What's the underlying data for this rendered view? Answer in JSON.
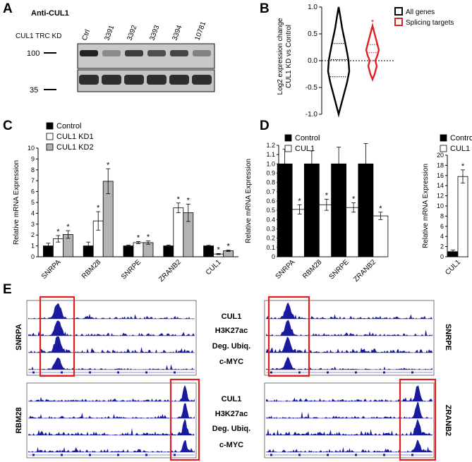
{
  "panels": {
    "A": {
      "label": "A",
      "title": "Anti-CUL1",
      "row_label": "CUL1 TRC KD",
      "lanes": [
        "Ctrl",
        "3391",
        "3392",
        "3393",
        "3394",
        "10781"
      ],
      "markers": [
        "100",
        "35"
      ]
    },
    "B": {
      "label": "B"
    },
    "C": {
      "label": "C"
    },
    "D": {
      "label": "D"
    },
    "E": {
      "label": "E",
      "track_labels": [
        "CUL1",
        "H3K27ac",
        "Deg. Ubiq.",
        "c-MYC"
      ],
      "genes": {
        "top_left": "SNRPA",
        "top_right": "SNRPE",
        "bottom_left": "RBM28",
        "bottom_right": "ZRANB2"
      },
      "colors": {
        "track": "#1a1a9e",
        "highlight": "#e02020"
      }
    }
  },
  "chart_data": [
    {
      "type": "violin",
      "panel": "B",
      "categories": [
        "All genes",
        "Splicing targets"
      ],
      "legend": [
        "All genes",
        "Splicing targets"
      ],
      "colors": [
        "#000000",
        "#e02020"
      ],
      "ylabel_lines": [
        "Log2 expression change",
        "CUL1 KD vs Control"
      ],
      "ylim": [
        -1.0,
        1.0
      ],
      "yticks": [
        "-1.0",
        "-0.5",
        "0.0",
        "0.5",
        "1.0"
      ],
      "significance": "*",
      "medians": [
        0.02,
        0.15
      ]
    },
    {
      "type": "bar",
      "panel": "C",
      "ylabel": "Relative mRNA Expression",
      "ylim": [
        0,
        10
      ],
      "yticks": [
        "0",
        "1",
        "2",
        "3",
        "4",
        "5",
        "6",
        "7",
        "8",
        "9",
        "10"
      ],
      "categories": [
        "SNRPA",
        "RBM28",
        "SNRPE",
        "ZRANB2",
        "CUL1"
      ],
      "series": [
        {
          "name": "Control",
          "values": [
            1.0,
            1.0,
            1.0,
            1.0,
            1.0
          ],
          "errors": [
            0.25,
            0.35,
            0.08,
            0.08,
            0.05
          ],
          "color": "#000000"
        },
        {
          "name": "CUL1 KD1",
          "values": [
            1.65,
            3.3,
            1.3,
            4.5,
            0.25
          ],
          "errors": [
            0.3,
            0.85,
            0.1,
            0.45,
            0.05
          ],
          "color": "#ffffff"
        },
        {
          "name": "CUL1 KD2",
          "values": [
            2.05,
            6.95,
            1.3,
            4.05,
            0.55
          ],
          "errors": [
            0.35,
            1.15,
            0.15,
            0.8,
            0.06
          ],
          "color": "#b3b3b3"
        }
      ],
      "stars": [
        "*",
        "*",
        "*",
        "*",
        "*",
        "*",
        "*",
        "*",
        "*",
        "*"
      ]
    },
    {
      "type": "bar",
      "panel": "D",
      "ylabel": "Relative mRNA Expression",
      "ylim": [
        0,
        1.2
      ],
      "yticks": [
        "0",
        "0.1",
        "0.2",
        "0.3",
        "0.4",
        "0.5",
        "0.6",
        "0.7",
        "0.8",
        "0.9",
        "1.0",
        "1.1",
        "1.2"
      ],
      "categories": [
        "SNRPA",
        "RBM28",
        "SNRPE",
        "ZRANB2"
      ],
      "series": [
        {
          "name": "Control",
          "values": [
            1.0,
            1.0,
            1.0,
            1.0
          ],
          "errors": [
            0.16,
            0.14,
            0.18,
            0.22
          ],
          "color": "#000000"
        },
        {
          "name": "CUL1",
          "values": [
            0.51,
            0.56,
            0.53,
            0.44
          ],
          "errors": [
            0.05,
            0.06,
            0.05,
            0.04
          ],
          "color": "#ffffff"
        }
      ],
      "stars": [
        "*",
        "*",
        "*",
        "*"
      ]
    },
    {
      "type": "bar",
      "panel": "D2",
      "ylabel": "Relative mRNA Expression",
      "ylim": [
        0,
        20
      ],
      "yticks": [
        "0",
        "2",
        "4",
        "6",
        "8",
        "10",
        "12",
        "14",
        "16",
        "18",
        "20"
      ],
      "categories": [
        "CUL1"
      ],
      "series": [
        {
          "name": "Control",
          "values": [
            1.0
          ],
          "errors": [
            0.3
          ],
          "color": "#000000"
        },
        {
          "name": "CUL1",
          "values": [
            15.8
          ],
          "errors": [
            1.3
          ],
          "color": "#ffffff"
        }
      ],
      "stars": [
        "*"
      ]
    }
  ]
}
